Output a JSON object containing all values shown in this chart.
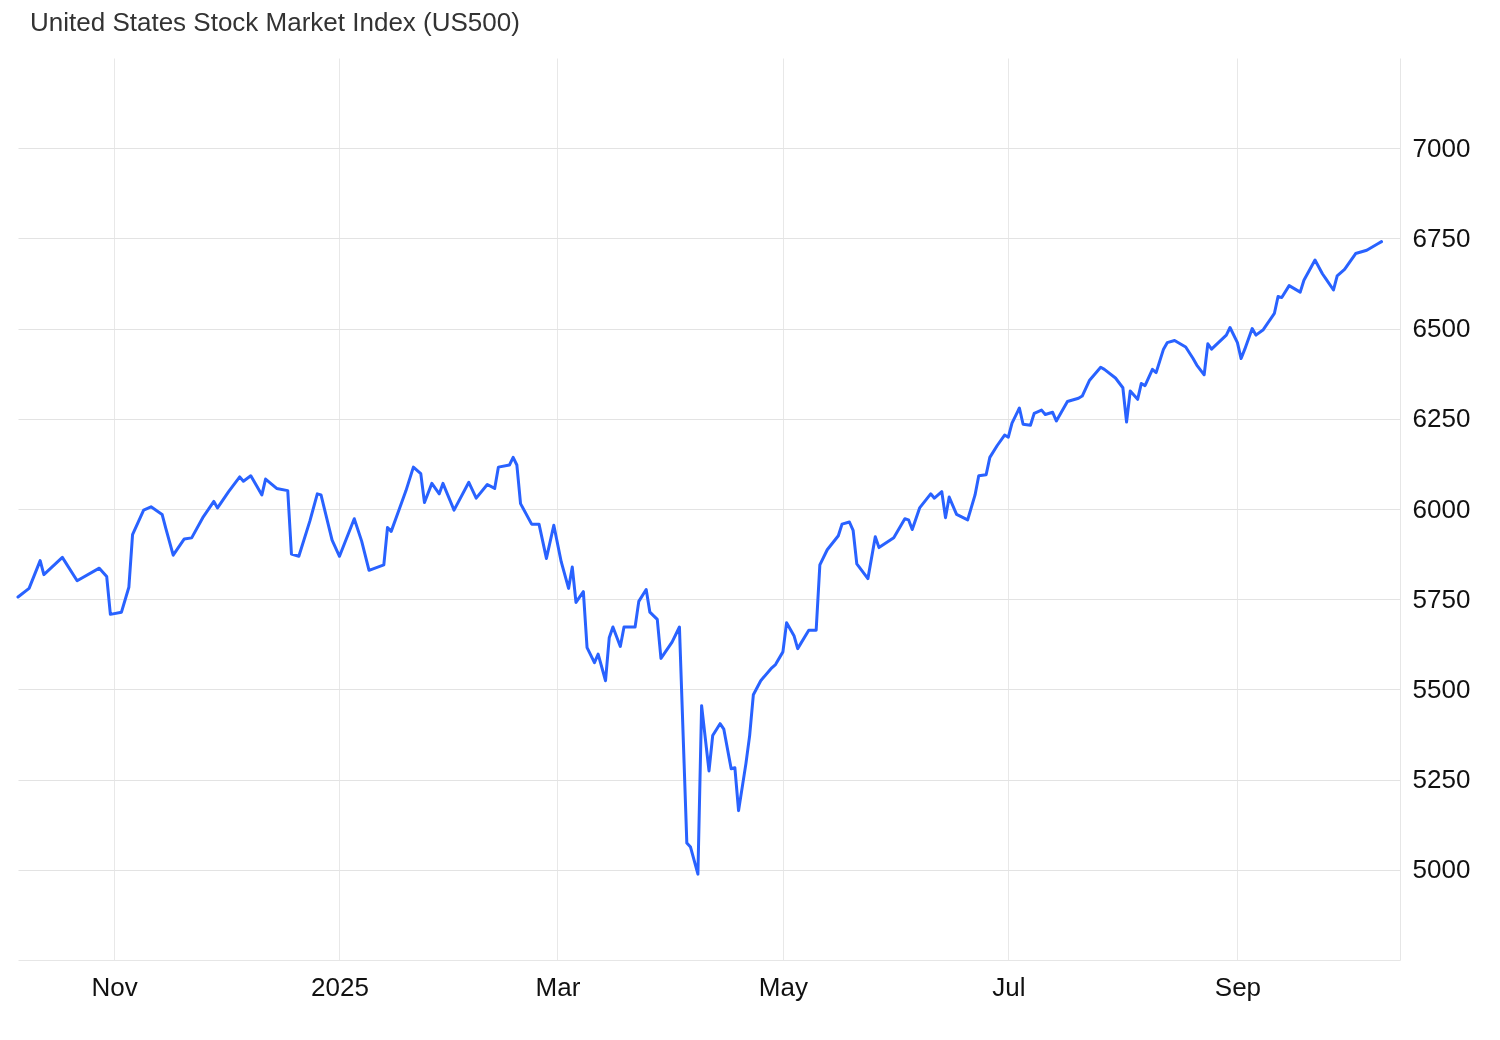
{
  "chart_data": {
    "type": "line",
    "title": "United States Stock Market Index (US500)",
    "x": [
      "2024-10-06",
      "2024-10-09",
      "2024-10-12",
      "2024-10-13",
      "2024-10-18",
      "2024-10-22",
      "2024-10-28",
      "2024-10-30",
      "2024-10-31",
      "2024-11-03",
      "2024-11-05",
      "2024-11-06",
      "2024-11-09",
      "2024-11-11",
      "2024-11-14",
      "2024-11-15",
      "2024-11-17",
      "2024-11-20",
      "2024-11-22",
      "2024-11-25",
      "2024-11-28",
      "2024-11-29",
      "2024-12-02",
      "2024-12-05",
      "2024-12-06",
      "2024-12-08",
      "2024-12-11",
      "2024-12-12",
      "2024-12-15",
      "2024-12-18",
      "2024-12-19",
      "2024-12-21",
      "2024-12-24",
      "2024-12-26",
      "2024-12-27",
      "2024-12-30",
      "2025-01-01",
      "2025-01-05",
      "2025-01-07",
      "2025-01-09",
      "2025-01-13",
      "2025-01-14",
      "2025-01-15",
      "2025-01-19",
      "2025-01-21",
      "2025-01-23",
      "2025-01-24",
      "2025-01-26",
      "2025-01-28",
      "2025-01-29",
      "2025-02-01",
      "2025-02-05",
      "2025-02-07",
      "2025-02-10",
      "2025-02-12",
      "2025-02-13",
      "2025-02-16",
      "2025-02-17",
      "2025-02-18",
      "2025-02-19",
      "2025-02-22",
      "2025-02-24",
      "2025-02-26",
      "2025-02-28",
      "2025-03-02",
      "2025-03-04",
      "2025-03-05",
      "2025-03-06",
      "2025-03-08",
      "2025-03-09",
      "2025-03-11",
      "2025-03-12",
      "2025-03-14",
      "2025-03-15",
      "2025-03-16",
      "2025-03-18",
      "2025-03-19",
      "2025-03-22",
      "2025-03-23",
      "2025-03-25",
      "2025-03-26",
      "2025-03-28",
      "2025-03-29",
      "2025-04-01",
      "2025-04-03",
      "2025-04-05",
      "2025-04-06",
      "2025-04-08",
      "2025-04-09",
      "2025-04-11",
      "2025-04-12",
      "2025-04-14",
      "2025-04-15",
      "2025-04-17",
      "2025-04-18",
      "2025-04-19",
      "2025-04-21",
      "2025-04-22",
      "2025-04-23",
      "2025-04-25",
      "2025-04-28",
      "2025-04-29",
      "2025-05-01",
      "2025-05-02",
      "2025-05-04",
      "2025-05-05",
      "2025-05-08",
      "2025-05-10",
      "2025-05-11",
      "2025-05-13",
      "2025-05-16",
      "2025-05-17",
      "2025-05-19",
      "2025-05-20",
      "2025-05-21",
      "2025-05-24",
      "2025-05-26",
      "2025-05-27",
      "2025-05-31",
      "2025-06-03",
      "2025-06-04",
      "2025-06-05",
      "2025-06-07",
      "2025-06-10",
      "2025-06-11",
      "2025-06-13",
      "2025-06-14",
      "2025-06-15",
      "2025-06-17",
      "2025-06-20",
      "2025-06-22",
      "2025-06-23",
      "2025-06-25",
      "2025-06-26",
      "2025-06-28",
      "2025-06-30",
      "2025-07-01",
      "2025-07-02",
      "2025-07-04",
      "2025-07-05",
      "2025-07-07",
      "2025-07-08",
      "2025-07-10",
      "2025-07-11",
      "2025-07-13",
      "2025-07-14",
      "2025-07-17",
      "2025-07-20",
      "2025-07-21",
      "2025-07-23",
      "2025-07-26",
      "2025-07-27",
      "2025-07-30",
      "2025-08-01",
      "2025-08-02",
      "2025-08-03",
      "2025-08-05",
      "2025-08-06",
      "2025-08-07",
      "2025-08-09",
      "2025-08-10",
      "2025-08-12",
      "2025-08-13",
      "2025-08-15",
      "2025-08-18",
      "2025-08-20",
      "2025-08-21",
      "2025-08-23",
      "2025-08-24",
      "2025-08-25",
      "2025-08-29",
      "2025-08-30",
      "2025-09-01",
      "2025-09-02",
      "2025-09-03",
      "2025-09-05",
      "2025-09-06",
      "2025-09-08",
      "2025-09-11",
      "2025-09-12",
      "2025-09-13",
      "2025-09-15",
      "2025-09-18",
      "2025-09-19",
      "2025-09-22",
      "2025-09-24",
      "2025-09-25",
      "2025-09-27",
      "2025-09-28",
      "2025-09-30",
      "2025-10-03",
      "2025-10-06",
      "2025-10-09",
      "2025-10-10"
    ],
    "series": [
      {
        "color": "#2962ff",
        "values": [
          5756,
          5780,
          5857,
          5818,
          5866,
          5801,
          5836,
          5813,
          5708,
          5714,
          5783,
          5929,
          5997,
          6006,
          5985,
          5946,
          5872,
          5917,
          5920,
          5976,
          6021,
          6003,
          6048,
          6089,
          6077,
          6092,
          6039,
          6083,
          6057,
          6051,
          5875,
          5869,
          5967,
          6042,
          6039,
          5914,
          5869,
          5973,
          5911,
          5830,
          5845,
          5949,
          5938,
          6051,
          6116,
          6098,
          6018,
          6071,
          6042,
          6071,
          5997,
          6074,
          6030,
          6068,
          6057,
          6116,
          6122,
          6143,
          6122,
          6015,
          5958,
          5958,
          5863,
          5955,
          5854,
          5780,
          5839,
          5741,
          5771,
          5616,
          5574,
          5598,
          5524,
          5643,
          5673,
          5619,
          5673,
          5673,
          5744,
          5777,
          5714,
          5694,
          5586,
          5631,
          5673,
          5074,
          5063,
          4988,
          5455,
          5274,
          5372,
          5405,
          5390,
          5280,
          5283,
          5164,
          5295,
          5372,
          5485,
          5524,
          5560,
          5569,
          5604,
          5685,
          5649,
          5613,
          5664,
          5664,
          5845,
          5887,
          5926,
          5958,
          5964,
          5941,
          5848,
          5807,
          5923,
          5893,
          5920,
          5973,
          5970,
          5943,
          6003,
          6042,
          6030,
          6048,
          5976,
          6033,
          5985,
          5970,
          6039,
          6092,
          6095,
          6143,
          6176,
          6205,
          6199,
          6238,
          6280,
          6235,
          6232,
          6265,
          6274,
          6262,
          6268,
          6244,
          6298,
          6307,
          6313,
          6357,
          6393,
          6387,
          6363,
          6336,
          6241,
          6327,
          6304,
          6348,
          6342,
          6387,
          6378,
          6443,
          6461,
          6467,
          6449,
          6417,
          6399,
          6372,
          6458,
          6443,
          6482,
          6503,
          6461,
          6417,
          6443,
          6500,
          6482,
          6497,
          6542,
          6589,
          6586,
          6619,
          6601,
          6634,
          6690,
          6652,
          6637,
          6607,
          6646,
          6664,
          6708,
          6717,
          6735,
          6741
        ]
      }
    ],
    "xlim": [
      "2024-10-06",
      "2025-10-15"
    ],
    "xticks": [
      {
        "value": "2024-11-01",
        "label": "Nov"
      },
      {
        "value": "2025-01-01",
        "label": "2025"
      },
      {
        "value": "2025-03-01",
        "label": "Mar"
      },
      {
        "value": "2025-05-01",
        "label": "May"
      },
      {
        "value": "2025-07-01",
        "label": "Jul"
      },
      {
        "value": "2025-09-01",
        "label": "Sep"
      }
    ],
    "ylim": [
      4750,
      7250
    ],
    "yticks": [
      5000,
      5250,
      5500,
      5750,
      6000,
      6250,
      6500,
      6750,
      7000
    ],
    "grid": true,
    "line_style": "solid"
  }
}
